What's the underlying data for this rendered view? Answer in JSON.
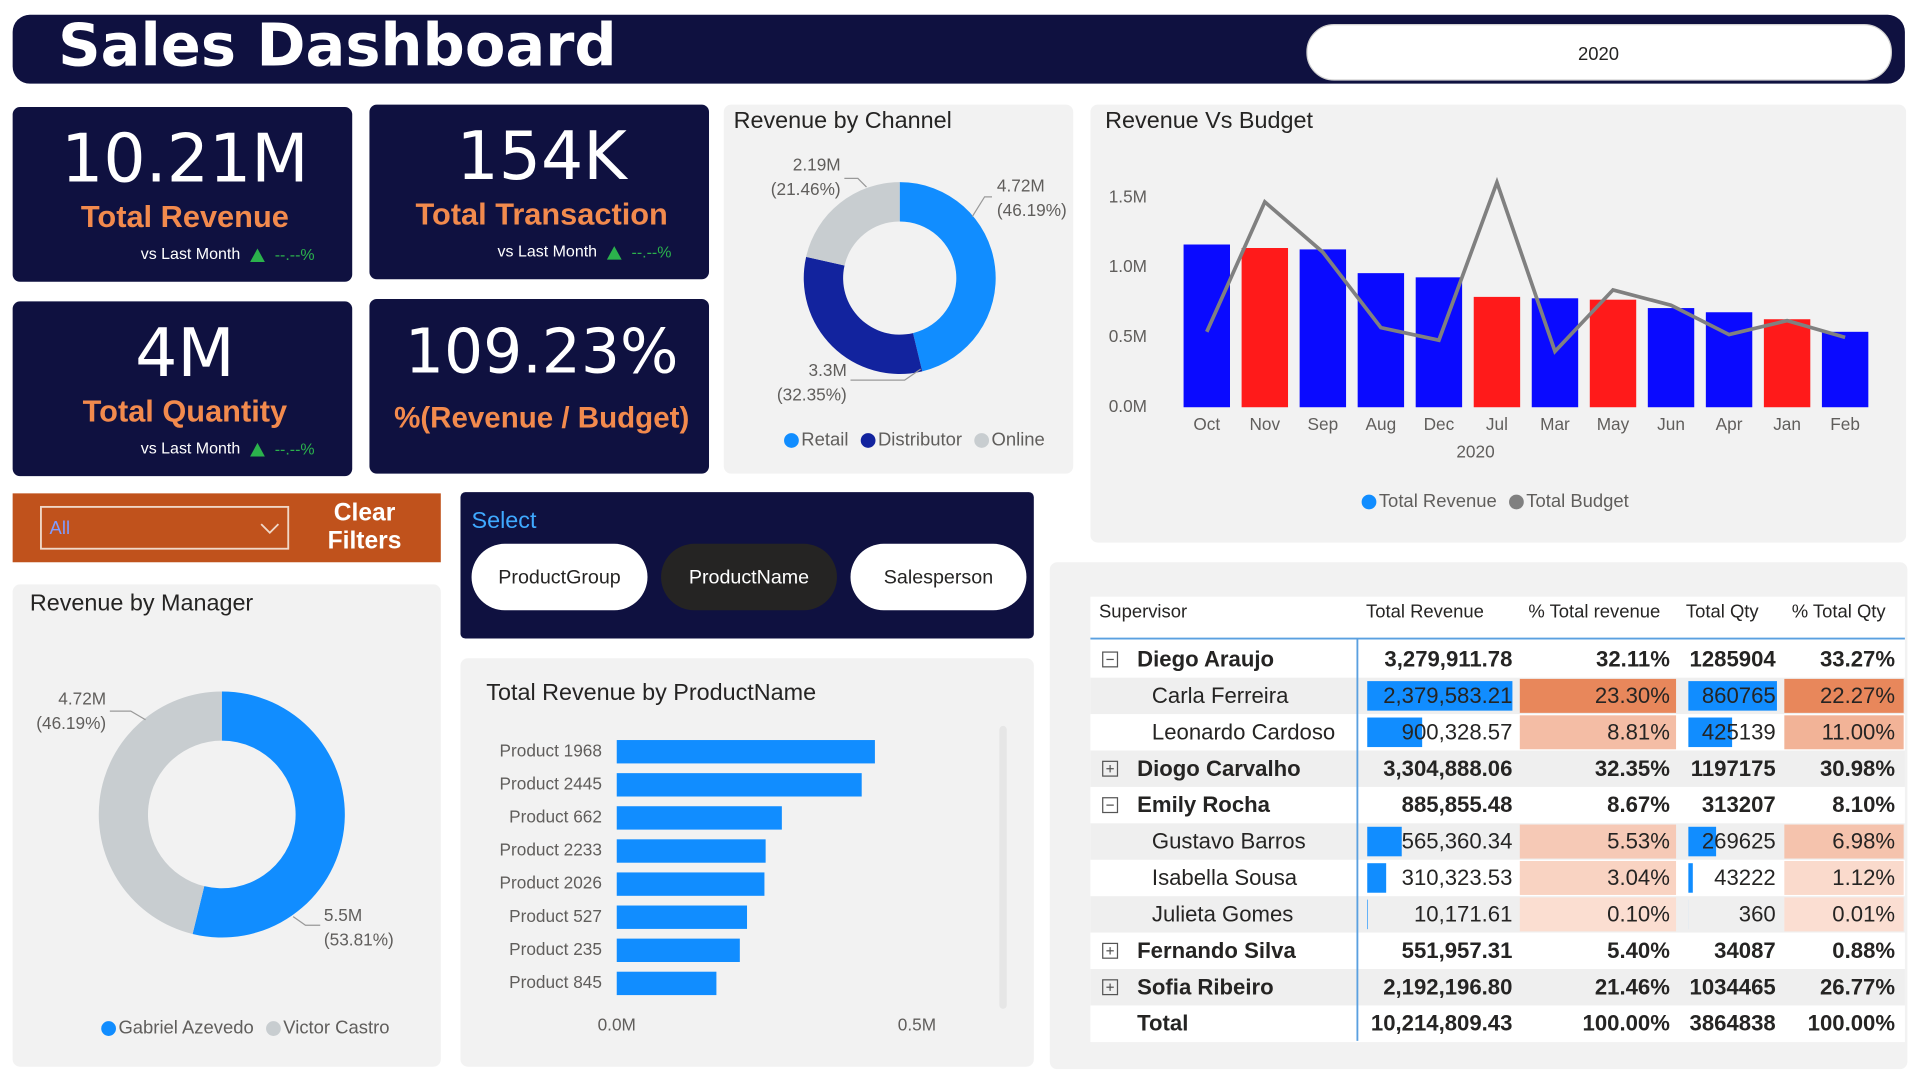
{
  "header": {
    "title": "Sales Dashboard",
    "year": "2020"
  },
  "kpis": [
    {
      "value": "10.21M",
      "label": "Total Revenue",
      "comparison": "vs Last Month",
      "delta": "--.--%"
    },
    {
      "value": "154K",
      "label": "Total Transaction",
      "comparison": "vs Last Month",
      "delta": "--.--%"
    },
    {
      "value": "4M",
      "label": "Total Quantity",
      "comparison": "vs Last Month",
      "delta": "--.--%"
    },
    {
      "value": "109.23%",
      "label": "%(Revenue / Budget)"
    }
  ],
  "filter": {
    "dropdown": "All",
    "clear_button": "Clear Filters"
  },
  "selector": {
    "title": "Select",
    "options": [
      "ProductGroup",
      "ProductName",
      "Salesperson"
    ],
    "selected": "ProductName"
  },
  "chart_data": [
    {
      "type": "pie",
      "donut": true,
      "title": "Revenue by Channel",
      "categories": [
        "Retail",
        "Distributor",
        "Online"
      ],
      "values": [
        4.72,
        3.3,
        2.19
      ],
      "value_labels": [
        "4.72M",
        "3.3M",
        "2.19M"
      ],
      "percent_labels": [
        "(46.19%)",
        "(32.35%)",
        "(21.46%)"
      ],
      "colors": [
        "#118dff",
        "#12239e",
        "#c8cdd0"
      ]
    },
    {
      "type": "bar",
      "title": "Revenue Vs Budget",
      "xlabel": "2020",
      "categories": [
        "Oct",
        "Nov",
        "Sep",
        "Aug",
        "Dec",
        "Jul",
        "Mar",
        "May",
        "Jun",
        "Apr",
        "Jan",
        "Feb"
      ],
      "series": [
        {
          "name": "Total Revenue",
          "color": "#118dff",
          "bar_colors": [
            "#0a0aff",
            "#ff1a1a",
            "#0a0aff",
            "#0a0aff",
            "#0a0aff",
            "#ff1a1a",
            "#0a0aff",
            "#ff1a1a",
            "#0a0aff",
            "#0a0aff",
            "#ff1a1a",
            "#0a0aff"
          ],
          "values": [
            1.165,
            1.14,
            1.13,
            0.96,
            0.93,
            0.79,
            0.78,
            0.77,
            0.71,
            0.68,
            0.63,
            0.54
          ]
        },
        {
          "name": "Total Budget",
          "type": "line",
          "color": "#808080",
          "values": [
            0.54,
            1.47,
            1.11,
            0.57,
            0.48,
            1.61,
            0.4,
            0.84,
            0.73,
            0.52,
            0.62,
            0.5
          ]
        }
      ],
      "ylim": [
        0,
        1.7
      ],
      "yticks": [
        {
          "value": 0,
          "label": "0.0M"
        },
        {
          "value": 0.5,
          "label": "0.5M"
        },
        {
          "value": 1,
          "label": "1.0M"
        },
        {
          "value": 1.5,
          "label": "1.5M"
        }
      ]
    },
    {
      "type": "pie",
      "donut": true,
      "title": "Revenue by Manager",
      "categories": [
        "Gabriel Azevedo",
        "Victor Castro"
      ],
      "values": [
        5.5,
        4.72
      ],
      "value_labels": [
        "5.5M",
        "4.72M"
      ],
      "percent_labels": [
        "(53.81%)",
        "(46.19%)"
      ],
      "colors": [
        "#118dff",
        "#c8cdd0"
      ]
    },
    {
      "type": "barh",
      "title": "Total Revenue by ProductName",
      "color": "#118dff",
      "categories": [
        "Product 1968",
        "Product 2445",
        "Product 662",
        "Product 2233",
        "Product 2026",
        "Product 527",
        "Product 235",
        "Product 845"
      ],
      "values": [
        0.43,
        0.408,
        0.275,
        0.248,
        0.246,
        0.217,
        0.205,
        0.166
      ],
      "xlim": [
        0,
        0.6
      ],
      "xticks": [
        {
          "value": 0,
          "label": "0.0M"
        },
        {
          "value": 0.5,
          "label": "0.5M"
        }
      ]
    }
  ],
  "table": {
    "columns": [
      "Supervisor",
      "Total Revenue",
      "% Total revenue",
      "Total Qty",
      "% Total Qty"
    ],
    "rows": [
      {
        "kind": "group-expanded",
        "cells": [
          "Diego Araujo",
          "3,279,911.78",
          "32.11%",
          "1285904",
          "33.27%"
        ]
      },
      {
        "kind": "detail",
        "cells": [
          "Carla Ferreira",
          "2,379,583.21",
          "23.30%",
          "860765",
          "22.27%"
        ]
      },
      {
        "kind": "detail",
        "cells": [
          "Leonardo Cardoso",
          "900,328.57",
          "8.81%",
          "425139",
          "11.00%"
        ]
      },
      {
        "kind": "group-collapsed",
        "cells": [
          "Diogo Carvalho",
          "3,304,888.06",
          "32.35%",
          "1197175",
          "30.98%"
        ]
      },
      {
        "kind": "group-expanded",
        "cells": [
          "Emily Rocha",
          "885,855.48",
          "8.67%",
          "313207",
          "8.10%"
        ]
      },
      {
        "kind": "detail",
        "cells": [
          "Gustavo Barros",
          "565,360.34",
          "5.53%",
          "269625",
          "6.98%"
        ]
      },
      {
        "kind": "detail",
        "cells": [
          "Isabella Sousa",
          "310,323.53",
          "3.04%",
          "43222",
          "1.12%"
        ]
      },
      {
        "kind": "detail",
        "cells": [
          "Julieta Gomes",
          "10,171.61",
          "0.10%",
          "360",
          "0.01%"
        ]
      },
      {
        "kind": "group-collapsed",
        "cells": [
          "Fernando Silva",
          "551,957.31",
          "5.40%",
          "34087",
          "0.88%"
        ]
      },
      {
        "kind": "group-collapsed",
        "cells": [
          "Sofia Ribeiro",
          "2,192,196.80",
          "21.46%",
          "1034465",
          "26.77%"
        ]
      },
      {
        "kind": "total",
        "cells": [
          "Total",
          "10,214,809.43",
          "100.00%",
          "3864838",
          "100.00%"
        ]
      }
    ]
  }
}
